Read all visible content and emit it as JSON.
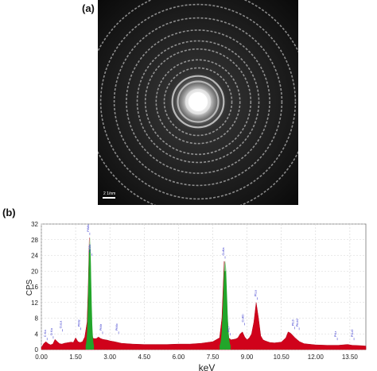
{
  "panels": {
    "a": {
      "label": "(a)",
      "scale_bar_text": "2 1/nm",
      "rings": [
        0.09,
        0.15,
        0.19,
        0.25,
        0.31,
        0.39,
        0.45,
        0.53,
        0.62,
        0.72,
        0.83
      ]
    },
    "b": {
      "label": "(b)"
    }
  },
  "chart_data": {
    "type": "area",
    "title": "",
    "xlabel": "keV",
    "ylabel": "CPS",
    "xlim": [
      0,
      14.2
    ],
    "ylim": [
      0,
      32
    ],
    "xticks": [
      "0.00",
      "1.50",
      "3.00",
      "4.50",
      "6.00",
      "7.50",
      "9.00",
      "10.50",
      "12.00",
      "13.50"
    ],
    "xtick_values": [
      0,
      1.5,
      3,
      4.5,
      6,
      7.5,
      9,
      10.5,
      12,
      13.5
    ],
    "yticks": [
      0,
      4,
      8,
      12,
      16,
      20,
      24,
      28,
      32
    ],
    "grid": true,
    "colors": {
      "background": "#d0021b",
      "highlight": "#22a52a",
      "labels": "#3333cc"
    },
    "spectrum": {
      "x": [
        0,
        0.1,
        0.2,
        0.3,
        0.4,
        0.5,
        0.6,
        0.7,
        0.8,
        0.9,
        1.0,
        1.1,
        1.2,
        1.3,
        1.4,
        1.5,
        1.6,
        1.7,
        1.8,
        1.9,
        2.0,
        2.05,
        2.1,
        2.15,
        2.2,
        2.25,
        2.3,
        2.4,
        2.5,
        2.6,
        2.7,
        2.8,
        2.9,
        3.0,
        3.2,
        3.5,
        4.0,
        4.5,
        5.0,
        5.5,
        6.0,
        6.5,
        7.0,
        7.5,
        7.8,
        7.9,
        8.0,
        8.05,
        8.1,
        8.2,
        8.3,
        8.4,
        8.5,
        8.6,
        8.7,
        8.8,
        8.9,
        9.0,
        9.1,
        9.2,
        9.3,
        9.4,
        9.5,
        9.6,
        9.7,
        9.8,
        10.0,
        10.2,
        10.5,
        10.7,
        10.8,
        10.9,
        11.0,
        11.1,
        11.2,
        11.3,
        11.5,
        12.0,
        12.5,
        13.0,
        13.4,
        13.6,
        14.0,
        14.2
      ],
      "y": [
        0.5,
        1.5,
        2.0,
        1.5,
        1.2,
        1.4,
        2.6,
        2.0,
        1.5,
        1.4,
        1.6,
        1.7,
        1.8,
        1.9,
        1.8,
        3.0,
        2.0,
        1.8,
        2.0,
        3.2,
        7.0,
        16.0,
        28.5,
        18.0,
        6.0,
        3.0,
        2.8,
        2.8,
        3.2,
        2.8,
        2.6,
        2.5,
        2.4,
        2.2,
        2.0,
        1.6,
        1.4,
        1.3,
        1.3,
        1.3,
        1.4,
        1.4,
        1.6,
        2.0,
        3.0,
        8.0,
        22.5,
        21.0,
        12.0,
        3.0,
        2.5,
        2.6,
        2.7,
        3.0,
        4.0,
        4.5,
        3.2,
        2.5,
        3.0,
        4.0,
        7.0,
        12.0,
        8.0,
        3.5,
        2.5,
        2.2,
        1.8,
        1.7,
        1.9,
        3.0,
        4.5,
        4.2,
        3.6,
        3.0,
        2.5,
        2.0,
        1.5,
        1.2,
        1.1,
        1.1,
        1.3,
        1.1,
        1.0,
        0.9
      ]
    },
    "green_peaks": [
      {
        "center": 2.12,
        "height": 28.5,
        "width": 0.06,
        "stripe_top": 25.5
      },
      {
        "center": 8.04,
        "height": 22.5,
        "width": 0.08,
        "stripe_top": 20.0
      }
    ],
    "peak_labels": [
      {
        "text": "C Ka",
        "x": 0.25,
        "y": 3.0
      },
      {
        "text": "O Ka",
        "x": 0.52,
        "y": 3.4
      },
      {
        "text": "CuLa",
        "x": 0.93,
        "y": 5.2
      },
      {
        "text": "PtMz",
        "x": 1.73,
        "y": 5.6
      },
      {
        "text": "PtMa",
        "x": 2.12,
        "y": 29.8
      },
      {
        "text": "AuMa",
        "x": 2.2,
        "y": 24.5
      },
      {
        "text": "PtMr",
        "x": 2.68,
        "y": 4.6
      },
      {
        "text": "PtMc",
        "x": 3.38,
        "y": 4.6
      },
      {
        "text": "CuKa",
        "x": 8.04,
        "y": 23.8
      },
      {
        "text": "PtLl",
        "x": 8.27,
        "y": 4.2
      },
      {
        "text": "CuKb",
        "x": 8.9,
        "y": 6.8
      },
      {
        "text": "PtLa",
        "x": 9.45,
        "y": 13.3
      },
      {
        "text": "PtLb",
        "x": 11.08,
        "y": 5.8
      },
      {
        "text": "PtLb2",
        "x": 11.28,
        "y": 5.6
      },
      {
        "text": "PtLr",
        "x": 12.95,
        "y": 3.0
      },
      {
        "text": "PtLr3",
        "x": 13.68,
        "y": 3.0
      }
    ]
  }
}
